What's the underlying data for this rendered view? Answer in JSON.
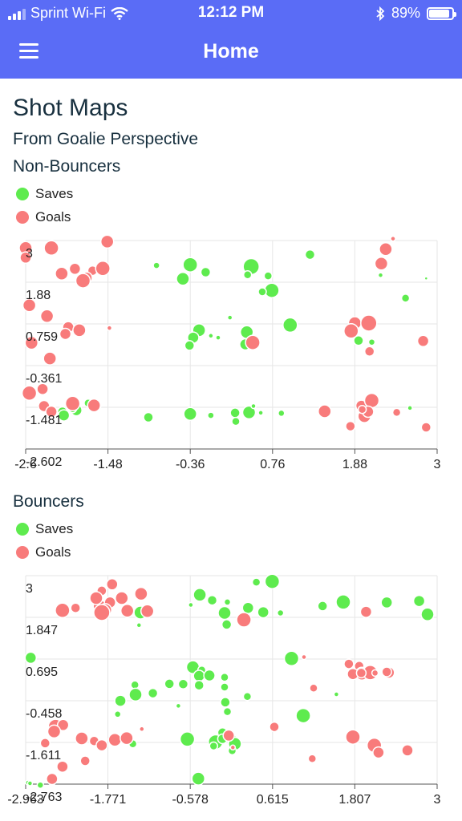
{
  "status_bar": {
    "carrier": "Sprint Wi-Fi",
    "time": "12:12 PM",
    "battery": "89%",
    "battery_level": 0.89
  },
  "header": {
    "title": "Home"
  },
  "page": {
    "title": "Shot Maps",
    "subtitle": "From Goalie Perspective"
  },
  "colors": {
    "header": "#5a6cf6",
    "saves": "#5eeb4e",
    "goals": "#f87b7b"
  },
  "chart_data": [
    {
      "type": "scatter",
      "title": "Non-Bouncers",
      "legend": [
        "Saves",
        "Goals"
      ],
      "xlim": [
        -2.6,
        3
      ],
      "ylim": [
        -2.602,
        3
      ],
      "x_ticks": [
        "-2.6",
        "-1.48",
        "-0.36",
        "0.76",
        "1.88",
        "3"
      ],
      "y_ticks": [
        "3",
        "1.88",
        "0.759",
        "-0.361",
        "-1.481",
        "-2.602"
      ],
      "grid": true,
      "series": [
        {
          "name": "Saves",
          "color": "#5eeb4e",
          "points": [
            [
              -0.36,
              2.35,
              9
            ],
            [
              -0.15,
              2.15,
              6
            ],
            [
              -0.46,
              1.97,
              8
            ],
            [
              -0.82,
              2.33,
              4
            ],
            [
              0.47,
              2.3,
              10
            ],
            [
              0.42,
              2.08,
              5
            ],
            [
              0.7,
              2.05,
              5
            ],
            [
              1.27,
              2.62,
              6
            ],
            [
              0.75,
              1.66,
              9
            ],
            [
              0.62,
              1.62,
              5
            ],
            [
              2.57,
              1.45,
              5
            ],
            [
              2.23,
              2.07,
              3
            ],
            [
              2.85,
              1.98,
              2
            ],
            [
              -0.24,
              0.59,
              8
            ],
            [
              0.41,
              0.54,
              8
            ],
            [
              -0.32,
              0.39,
              7
            ],
            [
              -0.37,
              0.18,
              6
            ],
            [
              0.02,
              0.39,
              3
            ],
            [
              1.0,
              0.73,
              9
            ],
            [
              0.39,
              0.21,
              7
            ],
            [
              2.04,
              0.67,
              4
            ],
            [
              2.11,
              0.27,
              4
            ],
            [
              1.93,
              0.31,
              6
            ],
            [
              -1.75,
              -1.37,
              5
            ],
            [
              -1.91,
              -1.56,
              7
            ],
            [
              -2.1,
              -1.6,
              6
            ],
            [
              -2.08,
              -1.7,
              7
            ],
            [
              -1.62,
              -1.45,
              4
            ],
            [
              -1.96,
              -1.52,
              5
            ],
            [
              -0.36,
              -1.66,
              8
            ],
            [
              0.25,
              -1.63,
              6
            ],
            [
              0.44,
              -1.62,
              8
            ],
            [
              0.26,
              -1.86,
              5
            ],
            [
              0.5,
              -1.45,
              3
            ],
            [
              -0.08,
              -1.7,
              4
            ],
            [
              0.88,
              -1.64,
              4
            ],
            [
              0.6,
              -1.63,
              3
            ],
            [
              -0.93,
              -1.75,
              6
            ],
            [
              1.99,
              -1.65,
              3
            ],
            [
              2.63,
              -1.5,
              3
            ],
            [
              0.18,
              0.93,
              3
            ],
            [
              -0.08,
              0.44,
              3
            ]
          ]
        },
        {
          "name": "Goals",
          "color": "#f87b7b",
          "points": [
            [
              -2.6,
              2.8,
              8
            ],
            [
              -2.25,
              2.8,
              9
            ],
            [
              -2.6,
              2.54,
              7
            ],
            [
              -1.93,
              2.24,
              7
            ],
            [
              -2.11,
              2.11,
              8
            ],
            [
              -1.69,
              2.19,
              6
            ],
            [
              -1.55,
              2.25,
              9
            ],
            [
              -1.77,
              2.0,
              7
            ],
            [
              -1.82,
              1.92,
              9
            ],
            [
              -1.49,
              2.97,
              8
            ],
            [
              -2.55,
              1.26,
              8
            ],
            [
              -2.31,
              0.97,
              8
            ],
            [
              -2.02,
              0.67,
              7
            ],
            [
              -2.06,
              0.49,
              7
            ],
            [
              -1.87,
              0.59,
              8
            ],
            [
              -1.46,
              0.65,
              3
            ],
            [
              -2.52,
              0.25,
              8
            ],
            [
              -2.27,
              -0.17,
              8
            ],
            [
              -2.55,
              -1.1,
              9
            ],
            [
              -2.37,
              -0.99,
              7
            ],
            [
              -2.35,
              -1.45,
              7
            ],
            [
              -1.96,
              -1.38,
              9
            ],
            [
              -1.67,
              -1.43,
              8
            ],
            [
              -2.25,
              -1.6,
              7
            ],
            [
              0.49,
              0.26,
              9
            ],
            [
              1.88,
              0.78,
              8
            ],
            [
              1.83,
              0.57,
              9
            ],
            [
              2.07,
              0.78,
              10
            ],
            [
              2.3,
              2.77,
              8
            ],
            [
              2.4,
              3.05,
              3
            ],
            [
              2.24,
              2.38,
              8
            ],
            [
              2.08,
              0.02,
              6
            ],
            [
              2.81,
              0.3,
              7
            ],
            [
              1.47,
              -1.59,
              8
            ],
            [
              1.97,
              -1.44,
              7
            ],
            [
              2.11,
              -1.3,
              9
            ],
            [
              2.01,
              -1.72,
              8
            ],
            [
              2.06,
              -1.6,
              7
            ],
            [
              2.45,
              -1.62,
              5
            ],
            [
              1.82,
              -1.99,
              6
            ],
            [
              2.85,
              -2.02,
              6
            ],
            [
              1.98,
              -1.54,
              5
            ]
          ]
        }
      ]
    },
    {
      "type": "scatter",
      "title": "Bouncers",
      "legend": [
        "Saves",
        "Goals"
      ],
      "xlim": [
        -2.963,
        3
      ],
      "ylim": [
        -2.763,
        3
      ],
      "x_ticks": [
        "-2.963",
        "-1.771",
        "-0.578",
        "0.615",
        "1.807",
        "3"
      ],
      "y_ticks": [
        "3",
        "1.847",
        "0.695",
        "-0.458",
        "-1.611",
        "-2.763"
      ],
      "grid": true,
      "series": [
        {
          "name": "Saves",
          "color": "#5eeb4e",
          "points": [
            [
              0.61,
              2.84,
              9
            ],
            [
              -0.44,
              2.47,
              8
            ],
            [
              -0.26,
              2.32,
              6
            ],
            [
              -0.57,
              2.19,
              3
            ],
            [
              -0.04,
              2.27,
              4
            ],
            [
              0.38,
              2.82,
              5
            ],
            [
              1.64,
              2.27,
              9
            ],
            [
              1.34,
              2.16,
              6
            ],
            [
              2.27,
              2.26,
              7
            ],
            [
              2.74,
              2.3,
              7
            ],
            [
              2.86,
              1.93,
              8
            ],
            [
              0.48,
              1.99,
              7
            ],
            [
              0.26,
              2.11,
              7
            ],
            [
              0.73,
              1.97,
              4
            ],
            [
              -0.08,
              1.97,
              8
            ],
            [
              -1.3,
              1.98,
              8
            ],
            [
              -0.05,
              1.65,
              6
            ],
            [
              -1.32,
              1.63,
              3
            ],
            [
              -2.89,
              0.73,
              7
            ],
            [
              0.89,
              0.71,
              9
            ],
            [
              -0.54,
              0.47,
              8
            ],
            [
              -0.41,
              0.39,
              5
            ],
            [
              -0.45,
              0.23,
              7
            ],
            [
              -0.3,
              0.24,
              7
            ],
            [
              -0.08,
              0.19,
              5
            ],
            [
              -0.08,
              -0.08,
              5
            ],
            [
              -1.38,
              -0.02,
              5
            ],
            [
              -0.88,
              0.01,
              6
            ],
            [
              -0.68,
              0.0,
              6
            ],
            [
              -0.45,
              -0.03,
              6
            ],
            [
              -1.37,
              -0.29,
              8
            ],
            [
              -1.12,
              -0.25,
              6
            ],
            [
              -1.59,
              -0.46,
              7
            ],
            [
              -0.75,
              -0.6,
              3
            ],
            [
              -0.07,
              -0.5,
              6
            ],
            [
              1.54,
              -0.28,
              3
            ],
            [
              -0.04,
              -0.76,
              5
            ],
            [
              0.25,
              -0.34,
              5
            ],
            [
              -1.63,
              -0.83,
              4
            ],
            [
              -0.62,
              -1.52,
              9
            ],
            [
              -0.21,
              -1.6,
              9
            ],
            [
              0.02,
              -1.5,
              6
            ],
            [
              0.06,
              -1.71,
              7
            ],
            [
              -0.11,
              -1.34,
              6
            ],
            [
              0.07,
              -1.65,
              8
            ],
            [
              -0.11,
              -1.51,
              6
            ],
            [
              -1.41,
              -1.65,
              5
            ],
            [
              -0.24,
              -1.71,
              5
            ],
            [
              -0.46,
              -2.61,
              8
            ],
            [
              0.03,
              -1.84,
              5
            ],
            [
              1.06,
              -0.87,
              9
            ],
            [
              -2.93,
              -2.72,
              3
            ],
            [
              -2.9,
              -2.74,
              3
            ],
            [
              -2.75,
              -2.79,
              4
            ]
          ]
        },
        {
          "name": "Goals",
          "color": "#f87b7b",
          "points": [
            [
              -2.43,
              2.04,
              9
            ],
            [
              -2.24,
              2.11,
              6
            ],
            [
              -1.89,
              2.15,
              8
            ],
            [
              -1.86,
              2.58,
              6
            ],
            [
              -1.71,
              2.76,
              7
            ],
            [
              -1.74,
              2.26,
              7
            ],
            [
              -1.81,
              2.05,
              8
            ],
            [
              -1.86,
              1.98,
              10
            ],
            [
              -1.57,
              2.38,
              8
            ],
            [
              -1.49,
              2.03,
              8
            ],
            [
              -1.29,
              2.5,
              8
            ],
            [
              -1.2,
              2.02,
              8
            ],
            [
              -1.94,
              2.38,
              8
            ],
            [
              1.07,
              0.75,
              3
            ],
            [
              1.72,
              0.56,
              6
            ],
            [
              1.87,
              0.5,
              6
            ],
            [
              1.91,
              0.29,
              8
            ],
            [
              2.03,
              0.32,
              9
            ],
            [
              2.1,
              0.31,
              4
            ],
            [
              2.3,
              0.32,
              7
            ],
            [
              2.27,
              0.34,
              6
            ],
            [
              1.78,
              0.28,
              7
            ],
            [
              1.9,
              0.31,
              6
            ],
            [
              0.2,
              1.78,
              9
            ],
            [
              1.21,
              -0.11,
              5
            ],
            [
              -0.02,
              -1.42,
              7
            ],
            [
              0.04,
              -1.75,
              3
            ],
            [
              -2.53,
              -1.17,
              9
            ],
            [
              -2.42,
              -1.13,
              7
            ],
            [
              -2.55,
              -1.31,
              8
            ],
            [
              -2.68,
              -1.63,
              6
            ],
            [
              -2.15,
              -1.5,
              8
            ],
            [
              -1.97,
              -1.57,
              6
            ],
            [
              -1.67,
              -1.54,
              8
            ],
            [
              -1.5,
              -1.49,
              8
            ],
            [
              -2.43,
              -2.28,
              7
            ],
            [
              -2.58,
              -2.62,
              7
            ],
            [
              -2.1,
              -2.12,
              6
            ],
            [
              -1.86,
              -1.69,
              7
            ],
            [
              1.19,
              -2.06,
              5
            ],
            [
              1.78,
              -1.46,
              9
            ],
            [
              2.09,
              -1.69,
              9
            ],
            [
              2.15,
              -1.89,
              7
            ],
            [
              2.57,
              -1.83,
              7
            ],
            [
              0.64,
              -1.18,
              6
            ],
            [
              -1.28,
              -1.24,
              3
            ],
            [
              1.97,
              2.0,
              7
            ]
          ]
        }
      ]
    }
  ]
}
